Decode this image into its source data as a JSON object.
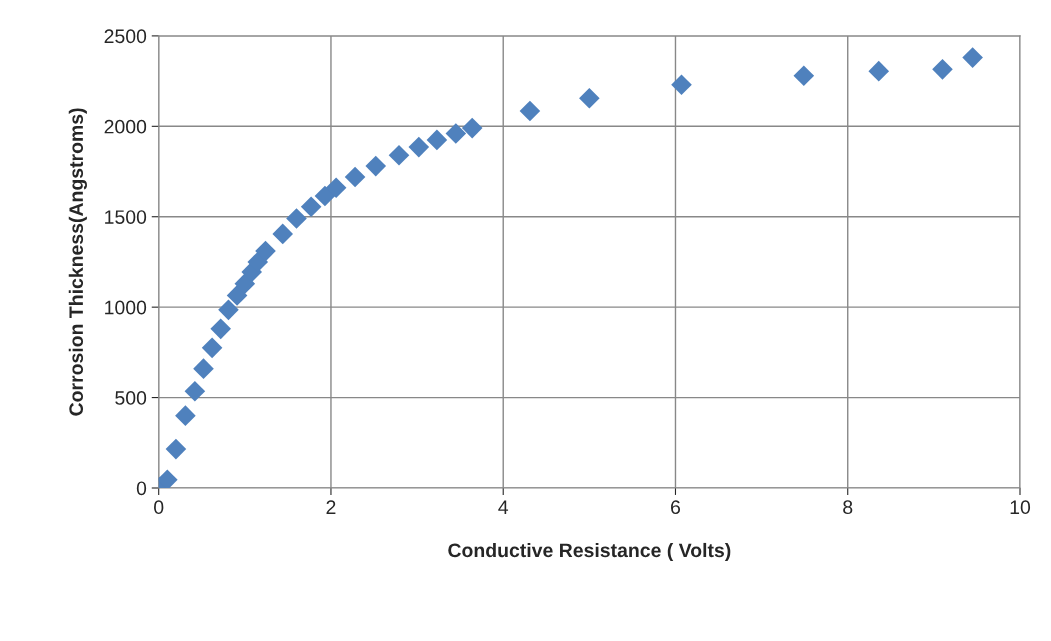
{
  "chart_data": {
    "type": "scatter",
    "xlabel": "Conductive Resistance ( Volts)",
    "ylabel": "Corrosion Thickness(Angstroms)",
    "x": [
      0.01,
      0.1,
      0.2,
      0.31,
      0.42,
      0.52,
      0.62,
      0.72,
      0.81,
      0.91,
      1.0,
      1.08,
      1.15,
      1.24,
      1.44,
      1.6,
      1.77,
      1.93,
      2.06,
      2.28,
      2.52,
      2.79,
      3.02,
      3.23,
      3.45,
      3.64,
      4.31,
      5.0,
      6.07,
      7.49,
      8.36,
      9.1,
      9.45
    ],
    "series": [
      {
        "color": "#4f81bd",
        "values": [
          5,
          45,
          215,
          400,
          535,
          660,
          775,
          880,
          985,
          1065,
          1130,
          1195,
          1250,
          1310,
          1405,
          1490,
          1555,
          1615,
          1660,
          1720,
          1780,
          1840,
          1885,
          1925,
          1960,
          1990,
          2085,
          2155,
          2230,
          2280,
          2305,
          2315,
          2380
        ]
      }
    ],
    "xlim": [
      0,
      10
    ],
    "xticks": [
      0,
      2,
      4,
      6,
      8,
      10
    ],
    "ylim": [
      0,
      2500
    ],
    "yticks": [
      0,
      500,
      1000,
      1500,
      2000,
      2500
    ],
    "grid": true,
    "marker": "diamond"
  }
}
